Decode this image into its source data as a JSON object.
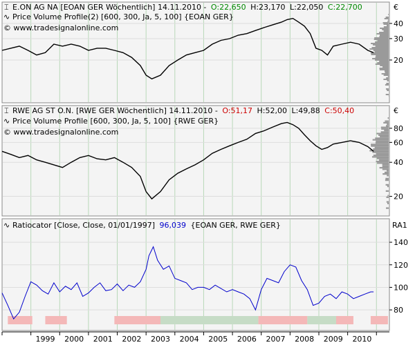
{
  "colors": {
    "panel_bg": "#f4f4f4",
    "grid_green": "#b8d8b8",
    "price_line": "#000000",
    "ratio_line": "#0000cc",
    "profile_fill": "#9a9a9a",
    "open_green": "#008800",
    "close_red": "#cc0000",
    "zone_red": "#f4b8b8",
    "zone_green": "#c6dcc6"
  },
  "panels": [
    {
      "id": "eon",
      "title_prefix": "E.ON AG NA [EOAN GER  Wöchentlich] 14.11.2010 -",
      "ohlc": {
        "o": "O:22,650",
        "h": "H:23,170",
        "l": "L:22,050",
        "c": "C:22,700"
      },
      "o_color": "green",
      "c_color": "green",
      "indicator_line": "Price Volume Profile(2) [600, 300, Ja, 5, 100] {EOAN GER}",
      "copyright": "© www.tradesignalonline.com",
      "unit": "€",
      "y_ticks": [
        20,
        30,
        40
      ],
      "ymin": 10,
      "ymax": 48,
      "log": true
    },
    {
      "id": "rwe",
      "title_prefix": "RWE AG ST O.N. [RWE GER  Wöchentlich] 14.11.2010 -",
      "ohlc": {
        "o": "O:51,17",
        "h": "H:52,00",
        "l": "L:49,88",
        "c": "C:50,40"
      },
      "o_color": "red",
      "c_color": "red",
      "indicator_line": "Price Volume Profile [600, 300, Ja, 5, 100] {RWE GER}",
      "copyright": "© www.tradesignalonline.com",
      "unit": "€",
      "y_ticks": [
        20,
        40,
        60,
        80
      ],
      "ymin": 15,
      "ymax": 100,
      "log": true
    },
    {
      "id": "ratio",
      "title_prefix": "Ratiocator [Close, Close, 01/01/1997]",
      "value": "96,039",
      "title_suffix": "{EOAN GER, RWE GER}",
      "unit": "RA1",
      "y_ticks": [
        80,
        100,
        120,
        140
      ],
      "ymin": 66,
      "ymax": 148,
      "log": false
    }
  ],
  "x_axis": {
    "labels": [
      "1999",
      "2000",
      "2001",
      "2002",
      "2003",
      "2004",
      "2005",
      "2006",
      "2007",
      "2008",
      "2009",
      "2010"
    ],
    "start": 1998.0,
    "end": 2011.45
  },
  "chart_data": [
    {
      "type": "line",
      "title": "E.ON AG NA [EOAN GER  Wöchentlich]",
      "x": [
        1998.0,
        1998.3,
        1998.6,
        1998.9,
        1999.2,
        1999.5,
        1999.8,
        2000.1,
        2000.4,
        2000.7,
        2001.0,
        2001.3,
        2001.6,
        2001.9,
        2002.2,
        2002.5,
        2002.8,
        2003.0,
        2003.2,
        2003.5,
        2003.8,
        2004.1,
        2004.4,
        2004.7,
        2005.0,
        2005.3,
        2005.6,
        2005.9,
        2006.2,
        2006.5,
        2006.8,
        2007.1,
        2007.4,
        2007.7,
        2007.9,
        2008.1,
        2008.3,
        2008.5,
        2008.7,
        2008.9,
        2009.1,
        2009.3,
        2009.5,
        2009.8,
        2010.1,
        2010.4,
        2010.7,
        2010.9
      ],
      "y": [
        24,
        25,
        26,
        24,
        22,
        23,
        27,
        26,
        27,
        26,
        24,
        25,
        25,
        24,
        23,
        21,
        18,
        15,
        14,
        15,
        18,
        20,
        22,
        23,
        24,
        27,
        29,
        30,
        32,
        33,
        35,
        37,
        39,
        41,
        43,
        44,
        41,
        38,
        33,
        25,
        24,
        22,
        26,
        27,
        28,
        27,
        24,
        23
      ],
      "ylim": [
        10,
        48
      ]
    },
    {
      "type": "line",
      "title": "RWE AG ST O.N. [RWE GER  Wöchentlich]",
      "x": [
        1998.0,
        1998.3,
        1998.6,
        1998.9,
        1999.2,
        1999.5,
        1999.8,
        2000.1,
        2000.4,
        2000.7,
        2001.0,
        2001.3,
        2001.6,
        2001.9,
        2002.2,
        2002.5,
        2002.8,
        2003.0,
        2003.2,
        2003.5,
        2003.8,
        2004.1,
        2004.4,
        2004.7,
        2005.0,
        2005.3,
        2005.6,
        2005.9,
        2006.2,
        2006.5,
        2006.8,
        2007.1,
        2007.4,
        2007.7,
        2007.9,
        2008.1,
        2008.3,
        2008.5,
        2008.7,
        2008.9,
        2009.1,
        2009.3,
        2009.5,
        2009.8,
        2010.1,
        2010.4,
        2010.7,
        2010.9
      ],
      "y": [
        50,
        47,
        44,
        46,
        42,
        40,
        38,
        36,
        40,
        44,
        46,
        43,
        42,
        44,
        40,
        36,
        30,
        22,
        19,
        22,
        28,
        32,
        35,
        38,
        42,
        48,
        52,
        56,
        60,
        64,
        72,
        76,
        82,
        88,
        90,
        86,
        80,
        70,
        62,
        56,
        52,
        54,
        58,
        60,
        62,
        60,
        55,
        50
      ],
      "ylim": [
        15,
        100
      ]
    },
    {
      "type": "line",
      "title": "Ratiocator [Close, Close, 01/01/1997]",
      "series_label": "{EOAN GER, RWE GER}",
      "last_value": "96,039",
      "x": [
        1998.0,
        1998.2,
        1998.4,
        1998.6,
        1998.8,
        1999.0,
        1999.2,
        1999.4,
        1999.6,
        1999.8,
        2000.0,
        2000.2,
        2000.4,
        2000.6,
        2000.8,
        2001.0,
        2001.2,
        2001.4,
        2001.6,
        2001.8,
        2002.0,
        2002.2,
        2002.4,
        2002.6,
        2002.8,
        2003.0,
        2003.1,
        2003.25,
        2003.4,
        2003.6,
        2003.8,
        2004.0,
        2004.2,
        2004.4,
        2004.6,
        2004.8,
        2005.0,
        2005.2,
        2005.4,
        2005.6,
        2005.8,
        2006.0,
        2006.2,
        2006.4,
        2006.6,
        2006.8,
        2007.0,
        2007.2,
        2007.4,
        2007.6,
        2007.8,
        2008.0,
        2008.2,
        2008.4,
        2008.6,
        2008.8,
        2009.0,
        2009.2,
        2009.4,
        2009.6,
        2009.8,
        2010.0,
        2010.2,
        2010.4,
        2010.6,
        2010.8,
        2010.9
      ],
      "y": [
        95,
        84,
        72,
        78,
        92,
        105,
        102,
        97,
        94,
        104,
        96,
        101,
        98,
        104,
        92,
        95,
        100,
        104,
        97,
        98,
        103,
        97,
        102,
        100,
        105,
        116,
        128,
        136,
        124,
        116,
        119,
        108,
        106,
        104,
        98,
        100,
        100,
        98,
        102,
        99,
        96,
        98,
        96,
        94,
        90,
        80,
        98,
        108,
        106,
        104,
        114,
        120,
        118,
        106,
        98,
        84,
        86,
        92,
        94,
        90,
        96,
        94,
        90,
        92,
        94,
        96,
        96
      ],
      "ylim": [
        66,
        148
      ],
      "zones": [
        {
          "from": 1998.2,
          "to": 1999.05,
          "color": "red"
        },
        {
          "from": 1999.5,
          "to": 2000.25,
          "color": "red"
        },
        {
          "from": 2001.9,
          "to": 2003.5,
          "color": "red"
        },
        {
          "from": 2003.5,
          "to": 2006.9,
          "color": "green"
        },
        {
          "from": 2006.9,
          "to": 2008.6,
          "color": "red"
        },
        {
          "from": 2008.6,
          "to": 2009.6,
          "color": "green"
        },
        {
          "from": 2009.6,
          "to": 2010.2,
          "color": "red"
        },
        {
          "from": 2010.8,
          "to": 2011.4,
          "color": "red"
        }
      ]
    }
  ]
}
